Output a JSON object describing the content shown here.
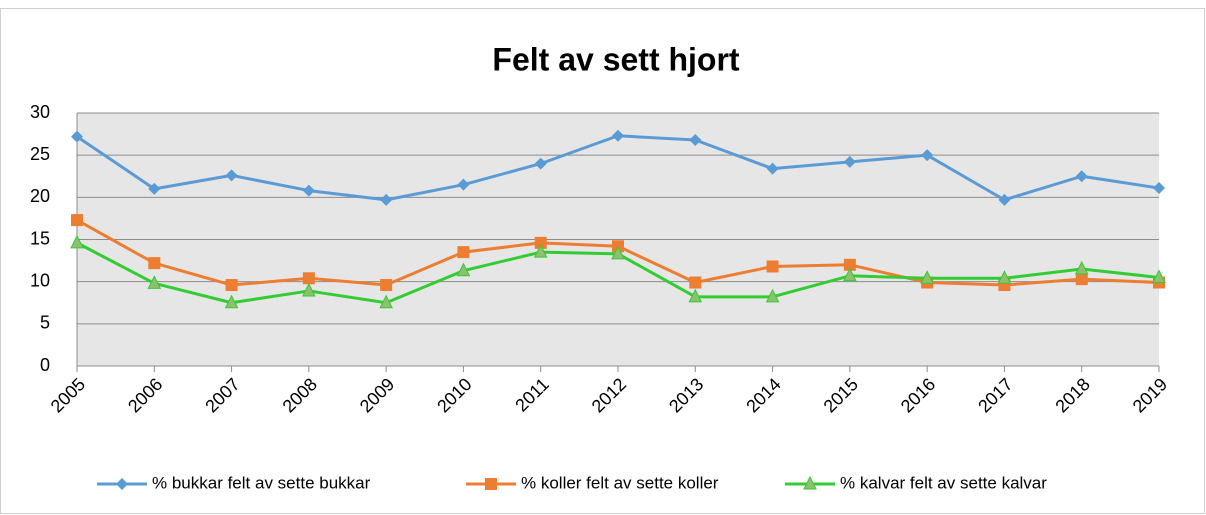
{
  "chart_data": {
    "type": "line",
    "title": "Felt av sett hjort",
    "categories": [
      "2005",
      "2006",
      "2007",
      "2008",
      "2009",
      "2010",
      "2011",
      "2012",
      "2013",
      "2014",
      "2015",
      "2016",
      "2017",
      "2018",
      "2019"
    ],
    "series": [
      {
        "name": "% bukkar felt av sette bukkar",
        "color": "#5b9bd5",
        "marker": "diamond",
        "values": [
          27.2,
          21,
          22.6,
          20.8,
          19.7,
          21.5,
          24,
          27.3,
          26.8,
          23.4,
          24.2,
          25,
          19.7,
          22.5,
          21.1
        ]
      },
      {
        "name": "% koller felt av sette koller",
        "color": "#ed7d31",
        "marker": "square",
        "values": [
          17.3,
          12.2,
          9.6,
          10.4,
          9.6,
          13.5,
          14.6,
          14.2,
          9.9,
          11.8,
          12,
          9.9,
          9.6,
          10.3,
          9.9
        ]
      },
      {
        "name": "% kalvar felt av sette kalvar",
        "color": "#33cc33",
        "marker": "triangle",
        "values": [
          14.6,
          9.8,
          7.5,
          8.9,
          7.5,
          11.3,
          13.5,
          13.3,
          8.2,
          8.2,
          10.7,
          10.4,
          10.4,
          11.5,
          10.5
        ]
      }
    ],
    "ylim": [
      0,
      30
    ],
    "yticks": [
      0,
      5,
      10,
      15,
      20,
      25,
      30
    ],
    "grid": true,
    "legend": "bottom"
  }
}
